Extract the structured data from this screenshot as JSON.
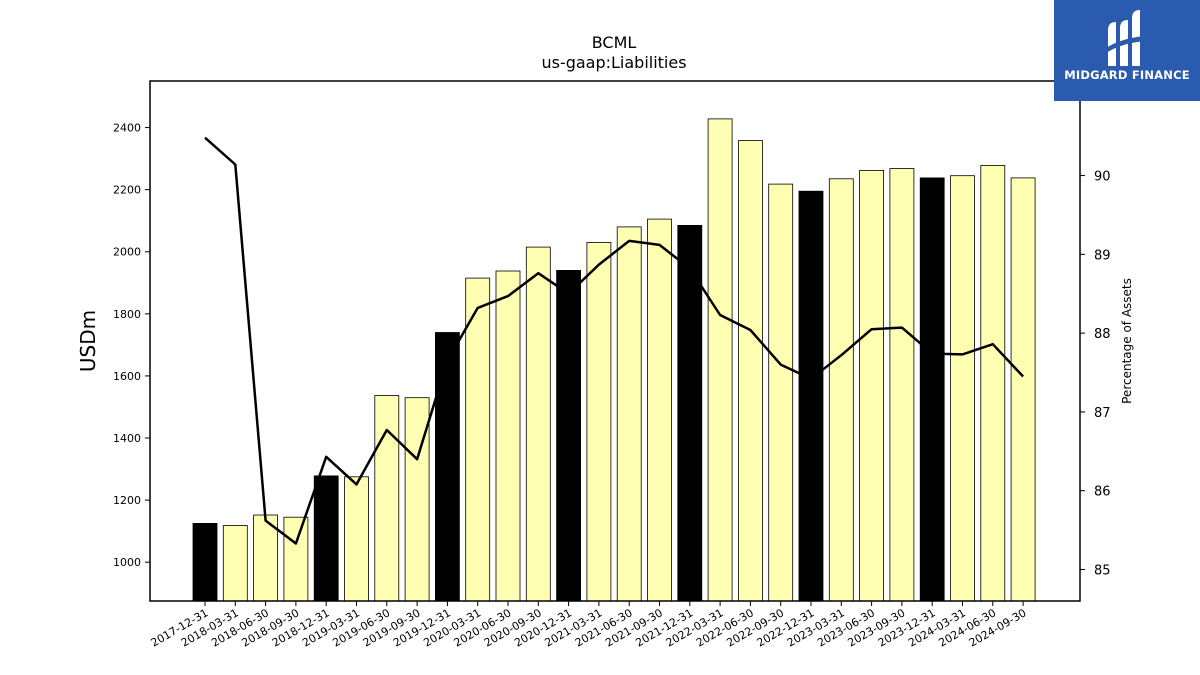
{
  "logo": {
    "text": "MIDGARD FINANCE",
    "color": "#2a5bae"
  },
  "chart_data": {
    "type": "bar",
    "title": "BCML",
    "subtitle": "us-gaap:Liabilities",
    "ylabel": "USDm",
    "ylabel_right": "Percentage of Assets",
    "ylim": [
      875,
      2550
    ],
    "ylim_right": [
      84.6,
      91.2
    ],
    "yticks": [
      1000,
      1200,
      1400,
      1600,
      1800,
      2000,
      2200,
      2400
    ],
    "yticks_right": [
      85,
      86,
      87,
      88,
      89,
      90
    ],
    "categories": [
      "2017-12-31",
      "2018-03-31",
      "2018-06-30",
      "2018-09-30",
      "2018-12-31",
      "2019-03-31",
      "2019-06-30",
      "2019-09-30",
      "2019-12-31",
      "2020-03-31",
      "2020-06-30",
      "2020-09-30",
      "2020-12-31",
      "2021-03-31",
      "2021-06-30",
      "2021-09-30",
      "2021-12-31",
      "2022-03-31",
      "2022-06-30",
      "2022-09-30",
      "2022-12-31",
      "2023-03-31",
      "2023-06-30",
      "2023-09-30",
      "2023-12-31",
      "2024-03-31",
      "2024-06-30",
      "2024-09-30"
    ],
    "series": [
      {
        "type": "bar",
        "values": [
          1125,
          1118,
          1152,
          1145,
          1278,
          1275,
          1537,
          1530,
          1740,
          1915,
          1938,
          2015,
          1940,
          2030,
          2080,
          2105,
          2085,
          2428,
          2358,
          2218,
          2195,
          2235,
          2262,
          2268,
          2238,
          2245,
          2278,
          2238
        ],
        "year_end_color": "#000000",
        "color": "#ffffb3"
      },
      {
        "type": "line",
        "axis": "right",
        "color": "#000000",
        "values": [
          90.48,
          90.14,
          85.62,
          85.33,
          86.43,
          86.08,
          86.77,
          86.4,
          87.65,
          88.32,
          88.47,
          88.76,
          88.5,
          88.87,
          89.17,
          89.12,
          88.82,
          88.23,
          88.04,
          87.6,
          87.42,
          87.72,
          88.05,
          88.07,
          87.74,
          87.73,
          87.86,
          87.45
        ]
      }
    ],
    "grid": false,
    "legend": "none"
  }
}
